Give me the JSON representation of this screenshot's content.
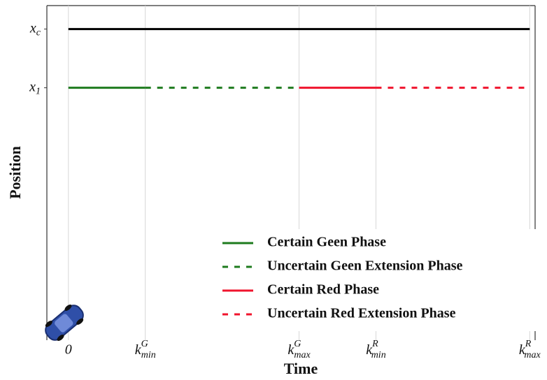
{
  "chart_data": {
    "type": "line",
    "x_label": "Time",
    "y_label": "Position",
    "xlim": [
      -0.28,
      6.07
    ],
    "ylim": [
      -0.3,
      5.4
    ],
    "xticks": [
      0,
      {
        "value": 1,
        "label": "k",
        "sup": "G",
        "sub": "min"
      },
      {
        "value": 3,
        "label": "k",
        "sup": "G",
        "sub": "max"
      },
      {
        "value": 4,
        "label": "k",
        "sup": "R",
        "sub": "min"
      },
      {
        "value": 6,
        "label": "k",
        "sup": "R",
        "sub": "max"
      }
    ],
    "yticks": [
      {
        "value": 5,
        "label": "x",
        "sub": "c"
      },
      {
        "value": 4,
        "label": "x",
        "sub": "1"
      }
    ],
    "grid": true,
    "series": [
      {
        "color": "#000000",
        "dashed": false,
        "x": [
          0,
          6
        ],
        "values": [
          5,
          5
        ]
      },
      {
        "name": "Certain Geen Phase",
        "color": "#1e7b1e",
        "dashed": false,
        "x": [
          0,
          1
        ],
        "values": [
          4,
          4
        ]
      },
      {
        "name": "Uncertain Geen Extension Phase",
        "color": "#1e7b1e",
        "dashed": true,
        "x": [
          1,
          3
        ],
        "values": [
          4,
          4
        ]
      },
      {
        "name": "Certain Red Phase",
        "color": "#f0142d",
        "dashed": false,
        "x": [
          3,
          4
        ],
        "values": [
          4,
          4
        ]
      },
      {
        "name": "Uncertain Red Extension Phase",
        "color": "#f0142d",
        "dashed": true,
        "x": [
          4,
          6
        ],
        "values": [
          4,
          4
        ]
      }
    ]
  }
}
